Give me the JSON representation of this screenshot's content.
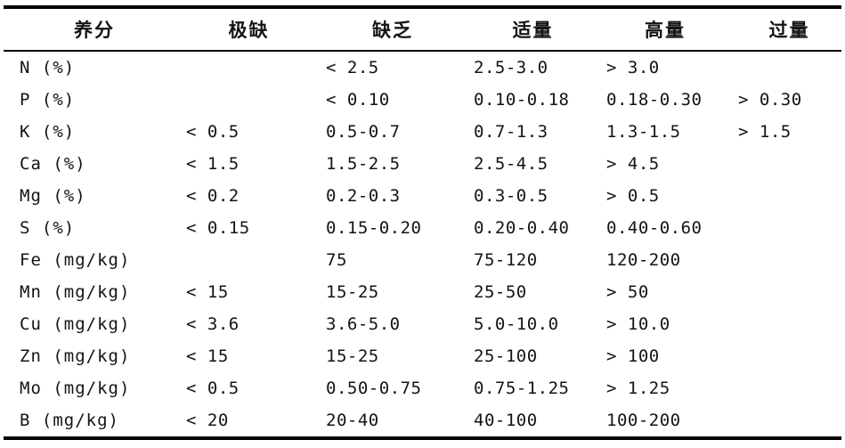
{
  "page": {
    "background": "#ffffff",
    "text_color": "#141414",
    "rule_color": "#000000"
  },
  "table": {
    "columns": [
      "养分",
      "极缺",
      "缺乏",
      "适量",
      "高量",
      "过量"
    ],
    "rows": [
      {
        "nutrient": "N (%)",
        "values": [
          "",
          "< 2.5",
          "2.5-3.0",
          "> 3.0",
          ""
        ]
      },
      {
        "nutrient": "P (%)",
        "values": [
          "",
          "< 0.10",
          "0.10-0.18",
          "0.18-0.30",
          "> 0.30"
        ]
      },
      {
        "nutrient": "K (%)",
        "values": [
          "< 0.5",
          "0.5-0.7",
          "0.7-1.3",
          "1.3-1.5",
          "> 1.5"
        ]
      },
      {
        "nutrient": "Ca (%)",
        "values": [
          "< 1.5",
          "1.5-2.5",
          "2.5-4.5",
          "> 4.5",
          ""
        ]
      },
      {
        "nutrient": "Mg (%)",
        "values": [
          "< 0.2",
          "0.2-0.3",
          "0.3-0.5",
          "> 0.5",
          ""
        ]
      },
      {
        "nutrient": "S (%)",
        "values": [
          "< 0.15",
          "0.15-0.20",
          "0.20-0.40",
          "0.40-0.60",
          ""
        ]
      },
      {
        "nutrient": "Fe (mg/kg)",
        "values": [
          "",
          "75",
          "75-120",
          "120-200",
          ""
        ]
      },
      {
        "nutrient": "Mn (mg/kg)",
        "values": [
          "< 15",
          "15-25",
          "25-50",
          "> 50",
          ""
        ]
      },
      {
        "nutrient": "Cu (mg/kg)",
        "values": [
          "< 3.6",
          "3.6-5.0",
          "5.0-10.0",
          "> 10.0",
          ""
        ]
      },
      {
        "nutrient": "Zn (mg/kg)",
        "values": [
          "< 15",
          "15-25",
          "25-100",
          "> 100",
          ""
        ]
      },
      {
        "nutrient": "Mo (mg/kg)",
        "values": [
          "< 0.5",
          "0.50-0.75",
          "0.75-1.25",
          "> 1.25",
          ""
        ]
      },
      {
        "nutrient": "B (mg/kg)",
        "values": [
          "< 20",
          "20-40",
          "40-100",
          "100-200",
          ""
        ]
      }
    ]
  }
}
